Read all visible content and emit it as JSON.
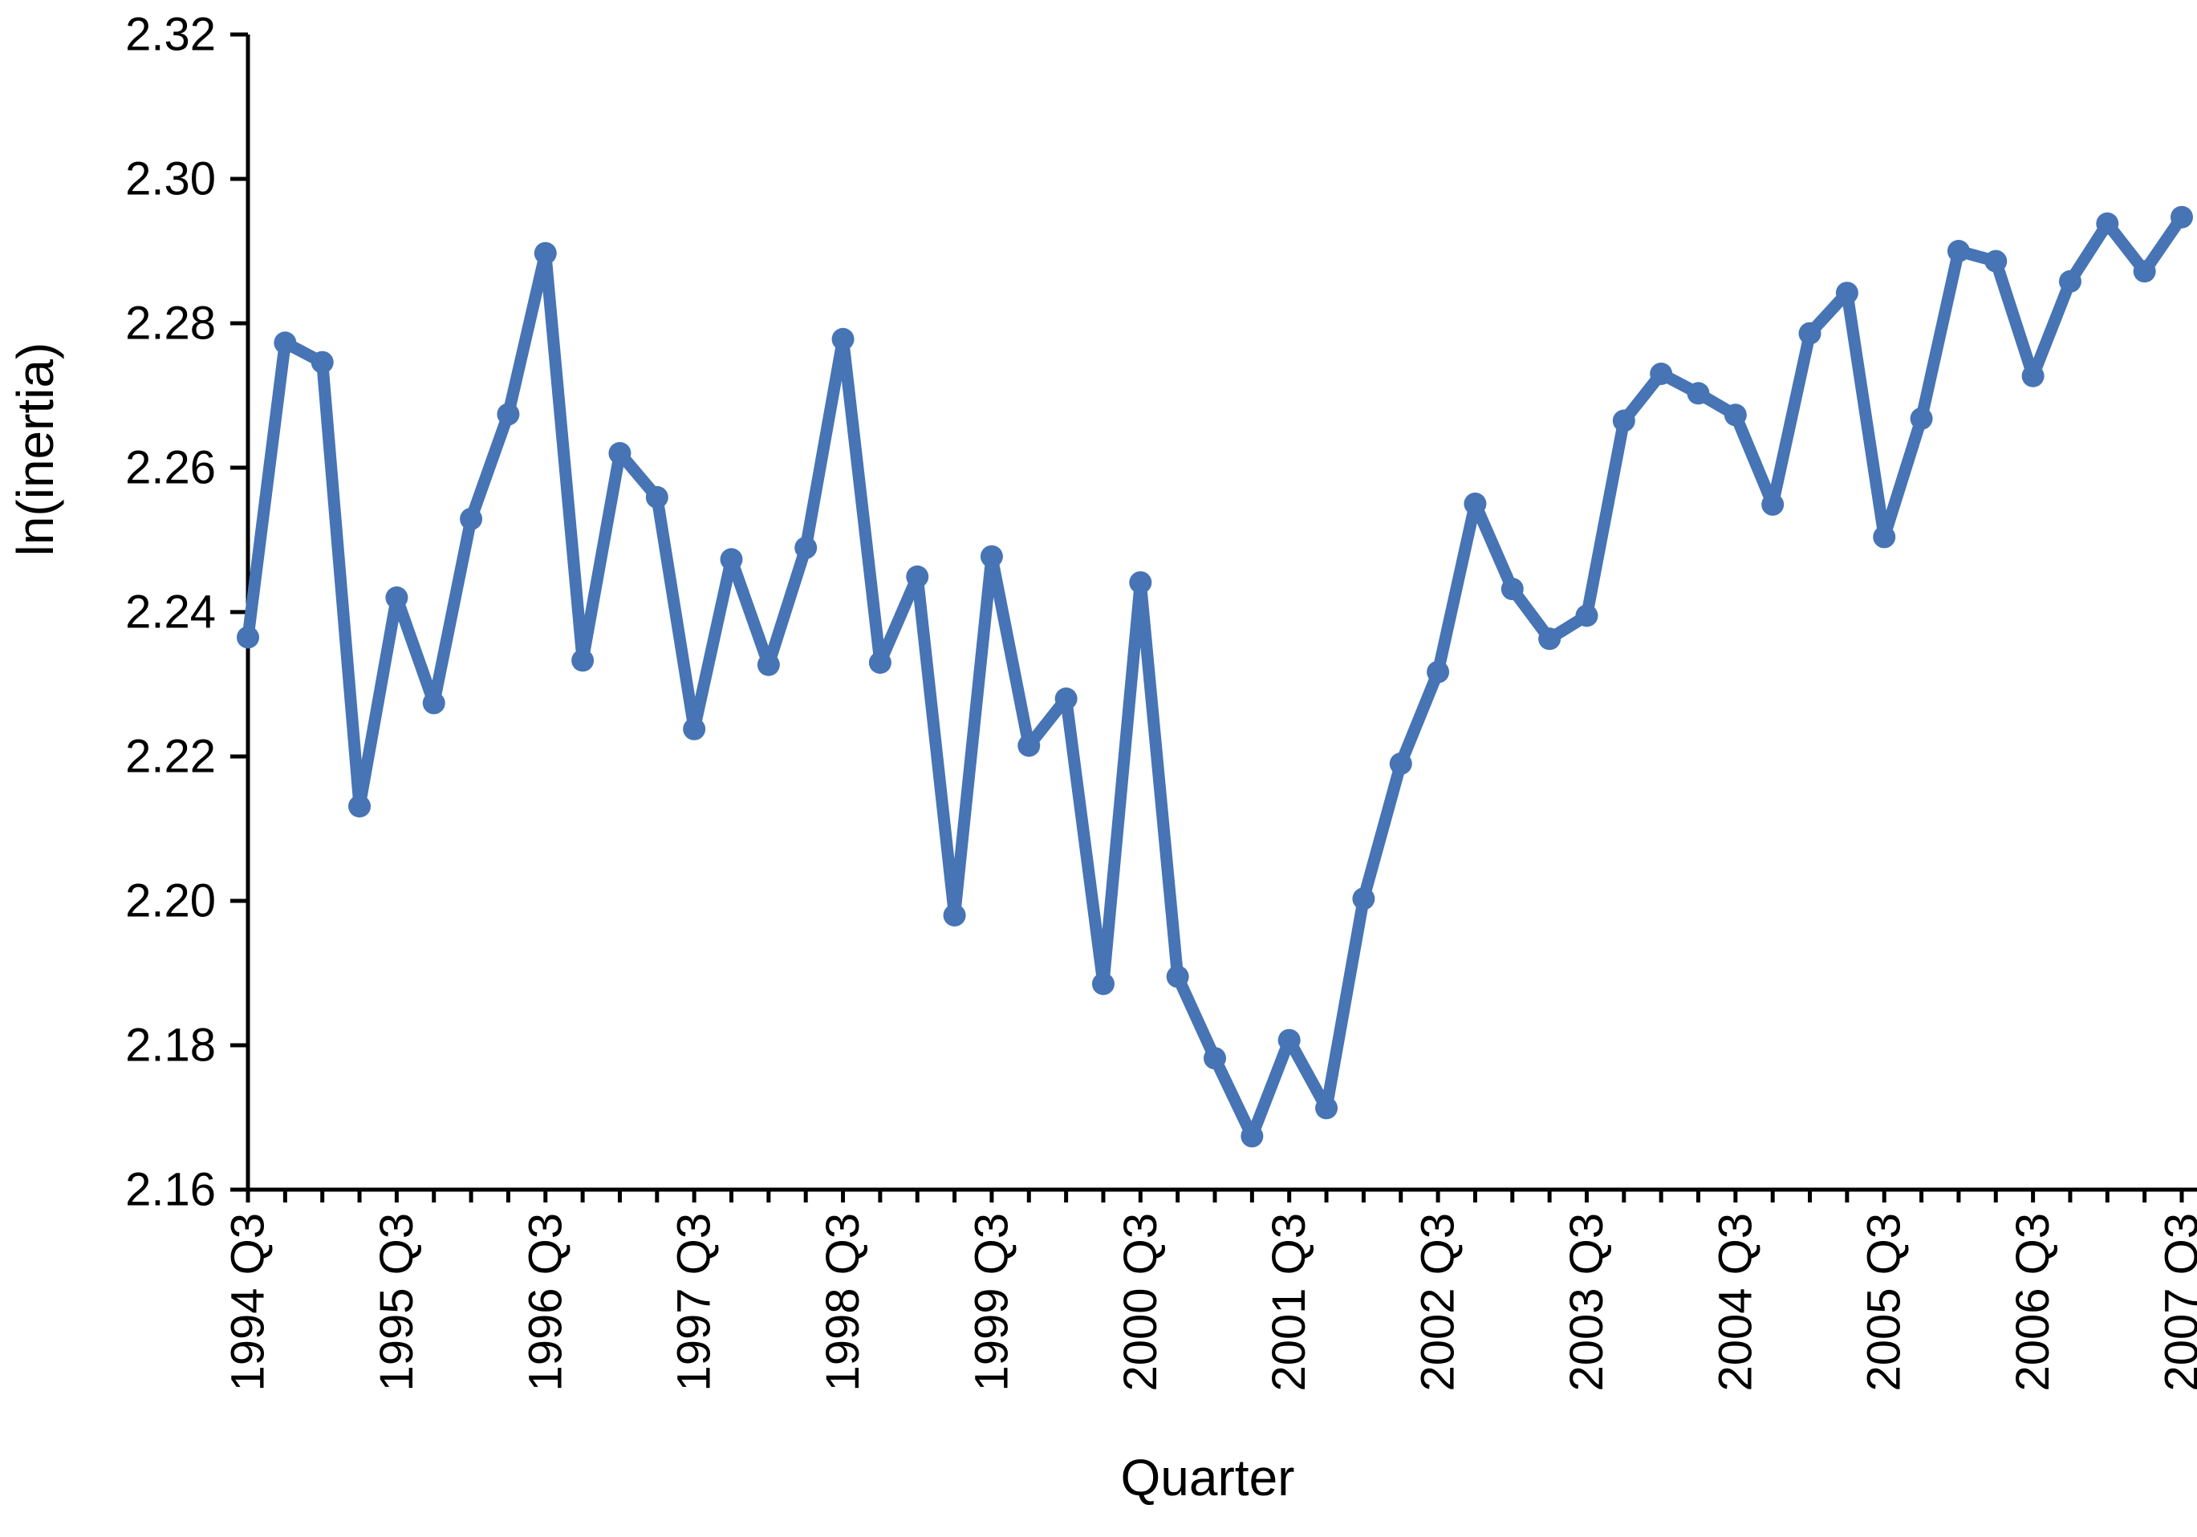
{
  "chart_data": {
    "type": "line",
    "title": "",
    "xlabel": "Quarter",
    "ylabel": "ln(inertia)",
    "x_categories": [
      "1994 Q3",
      "1994 Q4",
      "1995 Q1",
      "1995 Q2",
      "1995 Q3",
      "1995 Q4",
      "1996 Q1",
      "1996 Q2",
      "1996 Q3",
      "1996 Q4",
      "1997 Q1",
      "1997 Q2",
      "1997 Q3",
      "1997 Q4",
      "1998 Q1",
      "1998 Q2",
      "1998 Q3",
      "1998 Q4",
      "1999 Q1",
      "1999 Q2",
      "1999 Q3",
      "1999 Q4",
      "2000 Q1",
      "2000 Q2",
      "2000 Q3",
      "2000 Q4",
      "2001 Q1",
      "2001 Q2",
      "2001 Q3",
      "2001 Q4",
      "2002 Q1",
      "2002 Q2",
      "2002 Q3",
      "2002 Q4",
      "2003 Q1",
      "2003 Q2",
      "2003 Q3",
      "2003 Q4",
      "2004 Q1",
      "2004 Q2",
      "2004 Q3",
      "2004 Q4",
      "2005 Q1",
      "2005 Q2",
      "2005 Q3",
      "2005 Q4",
      "2006 Q1",
      "2006 Q2",
      "2006 Q3",
      "2006 Q4",
      "2007 Q1",
      "2007 Q2",
      "2007 Q3"
    ],
    "x_tick_labels": [
      "1994 Q3",
      "1995 Q3",
      "1996 Q3",
      "1997 Q3",
      "1998 Q3",
      "1999 Q3",
      "2000 Q3",
      "2001 Q3",
      "2002 Q3",
      "2003 Q3",
      "2004 Q3",
      "2005 Q3",
      "2006 Q3",
      "2007 Q3"
    ],
    "x_label_every_n": 4,
    "series": [
      {
        "name": "ln(inertia)",
        "values": [
          2.2365,
          2.2773,
          2.2746,
          2.2131,
          2.242,
          2.2274,
          2.2529,
          2.2674,
          2.2897,
          2.2333,
          2.262,
          2.2559,
          2.2238,
          2.2473,
          2.2327,
          2.2489,
          2.2778,
          2.233,
          2.2449,
          2.198,
          2.2477,
          2.2215,
          2.228,
          2.1885,
          2.2441,
          2.1895,
          2.1782,
          2.1674,
          2.1807,
          2.1713,
          2.2003,
          2.219,
          2.2317,
          2.255,
          2.2432,
          2.2363,
          2.2395,
          2.2665,
          2.273,
          2.2703,
          2.2673,
          2.2549,
          2.2786,
          2.2842,
          2.2504,
          2.2668,
          2.29,
          2.2886,
          2.2727,
          2.2858,
          2.2938,
          2.2872,
          2.2947
        ]
      }
    ],
    "ylim": [
      2.16,
      2.32
    ],
    "y_tick_step": 0.02,
    "y_tick_labels": [
      "2.16",
      "2.18",
      "2.20",
      "2.22",
      "2.24",
      "2.26",
      "2.28",
      "2.30",
      "2.32"
    ],
    "grid": false,
    "legend_position": "none",
    "line_color": "#4674b5",
    "marker": "circle",
    "axis_color": "#000000"
  }
}
